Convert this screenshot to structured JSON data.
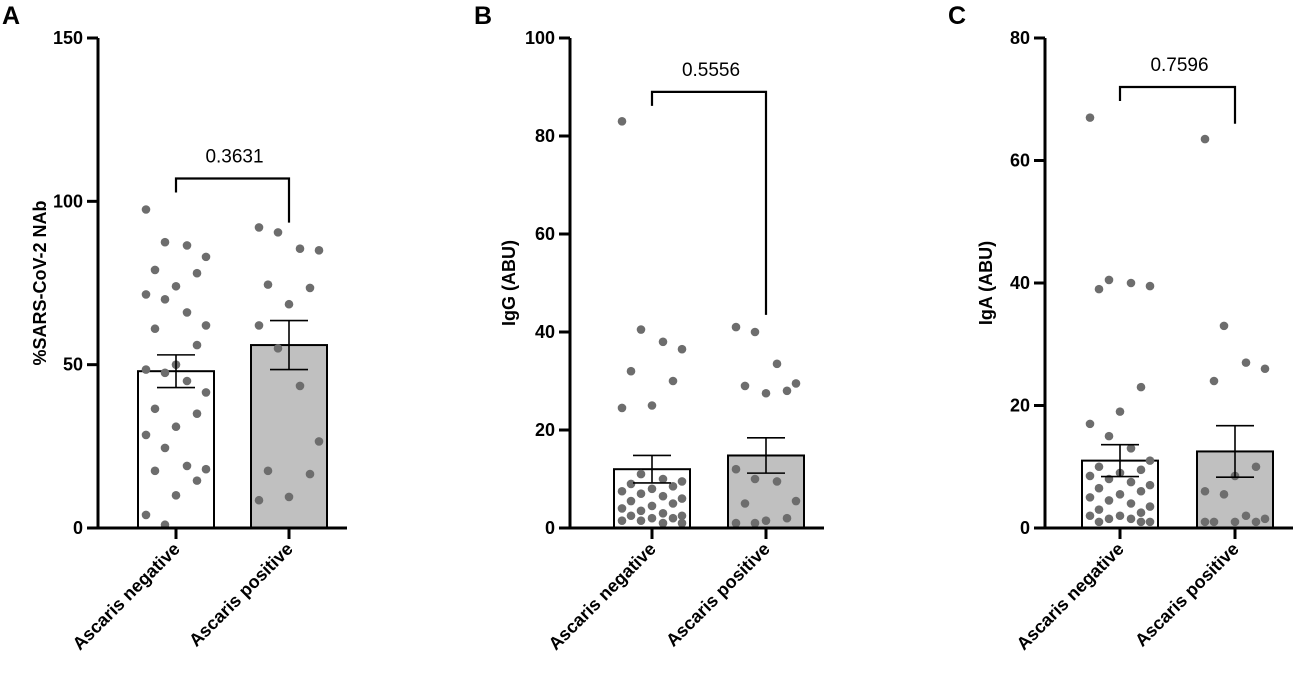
{
  "colors": {
    "negative_fill": "#ffffff",
    "positive_fill": "#c0c0c0",
    "points": "#6d6d6d",
    "axis": "#000000"
  },
  "chart_data": [
    {
      "type": "bar",
      "panel": "A",
      "ylabel": "%SARS-CoV-2 NAb",
      "ylim": [
        0,
        150
      ],
      "yticks": [
        0,
        50,
        100,
        150
      ],
      "categories": [
        "Ascaris negative",
        "Ascaris positive"
      ],
      "values": [
        48,
        56
      ],
      "sem": [
        5,
        7.5
      ],
      "p_value": "0.3631",
      "points": [
        [
          97.5,
          87.5,
          86.5,
          83,
          79,
          78,
          74,
          71.5,
          70,
          66,
          62,
          61,
          56,
          50,
          48.5,
          47.5,
          45,
          41.5,
          36.5,
          35,
          31,
          28.5,
          24.5,
          19,
          18,
          17.5,
          14.5,
          10,
          4,
          1
        ],
        [
          92,
          90.5,
          85.5,
          85,
          74.5,
          73.5,
          68.5,
          62,
          55,
          43.5,
          26.5,
          17.5,
          16.5,
          9.5,
          8.5
        ]
      ]
    },
    {
      "type": "bar",
      "panel": "B",
      "ylabel": "IgG (ABU)",
      "ylim": [
        0,
        100
      ],
      "yticks": [
        0,
        20,
        40,
        60,
        80,
        100
      ],
      "categories": [
        "Ascaris negative",
        "Ascaris positive"
      ],
      "values": [
        12,
        14.8
      ],
      "sem": [
        2.8,
        3.6
      ],
      "p_value": "0.5556",
      "points": [
        [
          83,
          40.5,
          38,
          36.5,
          32,
          30,
          25,
          24.5,
          11,
          10,
          9.5,
          9,
          8.5,
          8,
          7.5,
          7,
          6.5,
          6,
          5.5,
          5,
          4.5,
          4,
          3.5,
          3,
          2.5,
          2.5,
          2,
          2,
          1.5,
          1.5,
          1,
          1
        ],
        [
          41,
          40,
          33.5,
          29.5,
          29,
          28,
          27.5,
          12,
          10,
          9.5,
          5.5,
          5,
          2,
          1.5,
          1,
          1
        ]
      ]
    },
    {
      "type": "bar",
      "panel": "C",
      "ylabel": "IgA (ABU)",
      "ylim": [
        0,
        80
      ],
      "yticks": [
        0,
        20,
        40,
        60,
        80
      ],
      "categories": [
        "Ascaris negative",
        "Ascaris positive"
      ],
      "values": [
        11,
        12.5
      ],
      "sem": [
        2.6,
        4.2
      ],
      "p_value": "0.7596",
      "points": [
        [
          67,
          40.5,
          40,
          39.5,
          39,
          23,
          19,
          17,
          15,
          13,
          11,
          10,
          9.5,
          9,
          8.5,
          8,
          7.5,
          7,
          6.5,
          6,
          5.5,
          5,
          4.5,
          4,
          3.5,
          3,
          2.5,
          2,
          2,
          1.5,
          1.5,
          1,
          1,
          1
        ],
        [
          63.5,
          33,
          27,
          26,
          24,
          10,
          8.5,
          6,
          5.5,
          2,
          1.5,
          1,
          1,
          1,
          1
        ]
      ]
    }
  ]
}
